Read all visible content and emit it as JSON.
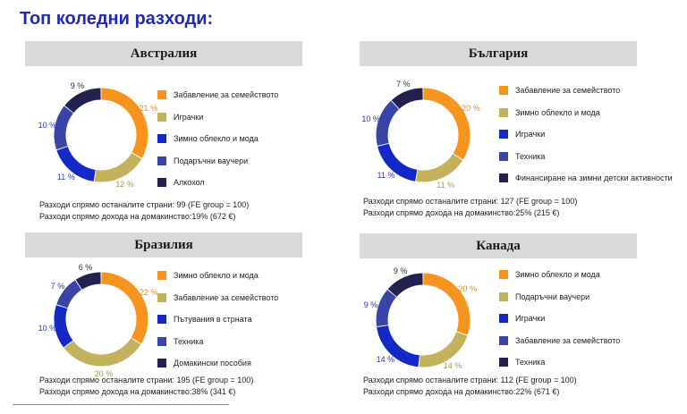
{
  "title": "Топ коледни разходи:",
  "colors": {
    "title": "#1f2ab5",
    "header_bg": "#d9d9d9",
    "label_orange": "#e8881f",
    "label_olive": "#a89a45",
    "label_blue": "#2a35c0",
    "label_dark": "#333333"
  },
  "chart_data": [
    {
      "type": "pie",
      "title": "Австралия",
      "categories": [
        "Забавление за семейството",
        "Играчки",
        "Зимно облекло и мода",
        "Подаръчни ваучери",
        "Алкохол"
      ],
      "values": [
        21,
        12,
        11,
        10,
        9
      ],
      "value_labels": [
        "21 %",
        "12 %",
        "11 %",
        "10 %",
        "9 %"
      ],
      "colors": [
        "#f7941d",
        "#c2b25c",
        "#1428c8",
        "#3b44a6",
        "#23214f"
      ],
      "stats": [
        "Разходи спрямо останалите страни: 99 (FE group = 100)",
        "Разходи спрямо дохода на домакинство:19% (672 €)"
      ]
    },
    {
      "type": "pie",
      "title": "България",
      "categories": [
        "Забавление за семейството",
        "Зимно облекло и мода",
        "Играчки",
        "Техника",
        "Финансиране на зимни детски активности"
      ],
      "values": [
        20,
        11,
        11,
        10,
        7
      ],
      "value_labels": [
        "20 %",
        "11 %",
        "11 %",
        "10 %",
        "7 %"
      ],
      "colors": [
        "#f7941d",
        "#c2b25c",
        "#1428c8",
        "#3b44a6",
        "#23214f"
      ],
      "stats": [
        "Разходи спрямо останалите страни: 127 (FE group = 100)",
        "Разходи спрямо дохода на домакинство:25% (215 €)"
      ]
    },
    {
      "type": "pie",
      "title": "Бразилия",
      "categories": [
        "Зимно облекло и мода",
        "Забавление за семейството",
        "Пътувания в стрната",
        "Техника",
        "Домакински пособия"
      ],
      "values": [
        22,
        20,
        10,
        7,
        6
      ],
      "value_labels": [
        "22 %",
        "20 %",
        "10 %",
        "7 %",
        "6 %"
      ],
      "colors": [
        "#f7941d",
        "#c2b25c",
        "#1428c8",
        "#3b44a6",
        "#23214f"
      ],
      "stats": [
        "Разходи спрямо останалите страни: 195 (FE group = 100)",
        "Разходи спрямо дохода на домакинство:38% (341 €)"
      ]
    },
    {
      "type": "pie",
      "title": "Канада",
      "categories": [
        "Зимно облекло и мода",
        "Подаръчни ваучери",
        "Играчки",
        "Забавление за семейството",
        "Техника"
      ],
      "values": [
        20,
        14,
        14,
        9,
        9
      ],
      "value_labels": [
        "20 %",
        "14 %",
        "14 %",
        "9 %",
        "9 %"
      ],
      "colors": [
        "#f7941d",
        "#c2b25c",
        "#1428c8",
        "#3b44a6",
        "#23214f"
      ],
      "stats": [
        "Разходи спрямо останалите страни: 112 (FE group = 100)",
        "Разходи спрямо дохода на домакинство:22% (671 €)"
      ]
    }
  ]
}
